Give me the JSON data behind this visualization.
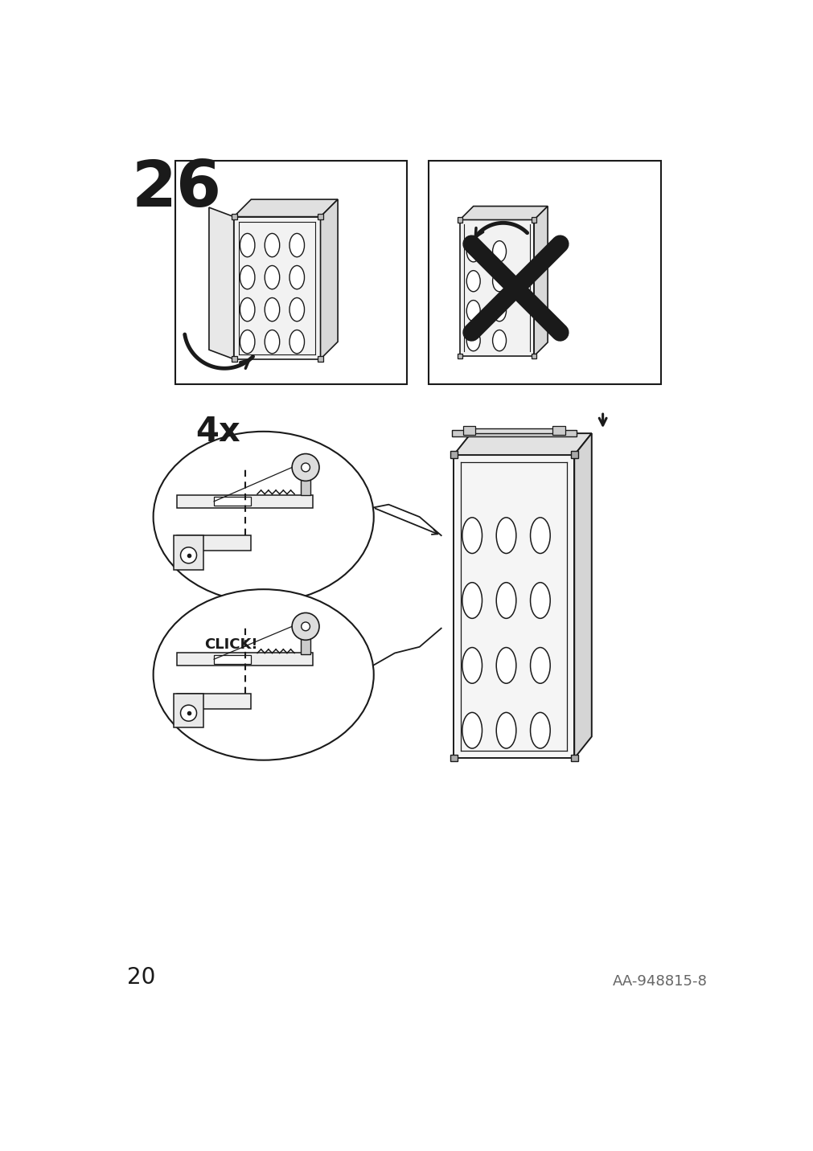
{
  "step_number": "26",
  "page_number": "20",
  "reference": "AA-948815-8",
  "bg_color": "#ffffff",
  "line_color": "#1a1a1a",
  "click_text": "CLICK!",
  "count_text": "4x"
}
